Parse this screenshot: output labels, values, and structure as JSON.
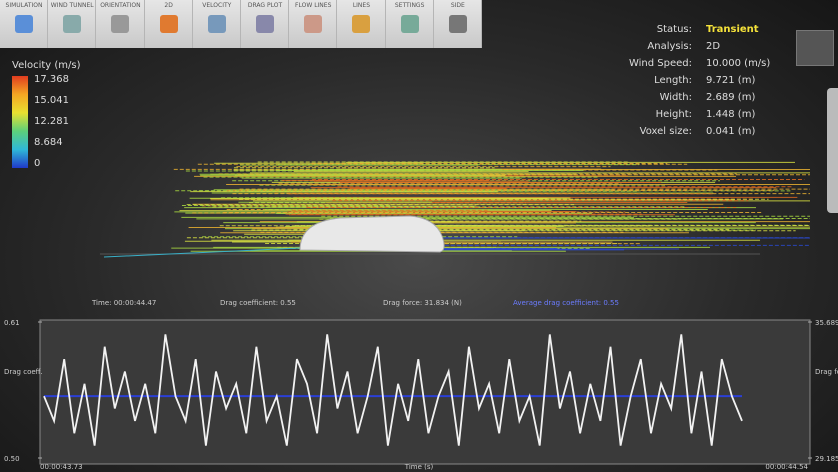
{
  "toolbar": [
    "SIMULATION",
    "WIND TUNNEL",
    "ORIENTATION",
    "2D",
    "VELOCITY",
    "DRAG PLOT",
    "FLOW LINES",
    "LINES",
    "SETTINGS",
    "SIDE"
  ],
  "legend": {
    "title": "Velocity (m/s)",
    "labels": [
      "17.368",
      "15.041",
      "12.281",
      "8.684",
      "0"
    ]
  },
  "info": [
    [
      "Status:",
      "Transient"
    ],
    [
      "Analysis:",
      "2D"
    ],
    [
      "Wind Speed:",
      "10.000 (m/s)"
    ],
    [
      "Length:",
      "9.721 (m)"
    ],
    [
      "Width:",
      "2.689 (m)"
    ],
    [
      "Height:",
      "1.448 (m)"
    ],
    [
      "Voxel size:",
      "0.041 (m)"
    ]
  ],
  "status": [
    "Time: 00:00:44.47",
    "Drag coefficient: 0.55",
    "Drag force: 31.834 (N)",
    "Average drag coefficient: 0.55"
  ],
  "chart_data": {
    "type": "line",
    "ylabel": "Drag coeff.",
    "y2label": "Drag force (N)",
    "xlabel": "Time (s)",
    "xlim": [
      "00:00:43.73",
      "00:00:44.54"
    ],
    "ylim": [
      0.5,
      0.61
    ],
    "yticks": [
      {
        "value": 0.5,
        "label": "0.50"
      },
      0.61
    ],
    "y2lim": [
      29.185,
      35.689
    ],
    "y2ticks": [
      29.185,
      35.689
    ],
    "series": [
      {
        "color": "#f2f2f2",
        "values": [
          0.55,
          0.53,
          0.58,
          0.52,
          0.56,
          0.51,
          0.59,
          0.54,
          0.57,
          0.53,
          0.56,
          0.52,
          0.6,
          0.55,
          0.53,
          0.58,
          0.51,
          0.57,
          0.54,
          0.56,
          0.52,
          0.59,
          0.53,
          0.55,
          0.51,
          0.58,
          0.56,
          0.52,
          0.6,
          0.54,
          0.57,
          0.52,
          0.55,
          0.59,
          0.51,
          0.56,
          0.53,
          0.58,
          0.52,
          0.55,
          0.57,
          0.51,
          0.59,
          0.54,
          0.56,
          0.52,
          0.58,
          0.53,
          0.55,
          0.51,
          0.6,
          0.54,
          0.57,
          0.52,
          0.56,
          0.53,
          0.59,
          0.51,
          0.55,
          0.58,
          0.52,
          0.56,
          0.54,
          0.6,
          0.52,
          0.57,
          0.51,
          0.58,
          0.55,
          0.53
        ]
      }
    ],
    "average": 0.55,
    "average_color": "#2b3fd6"
  }
}
